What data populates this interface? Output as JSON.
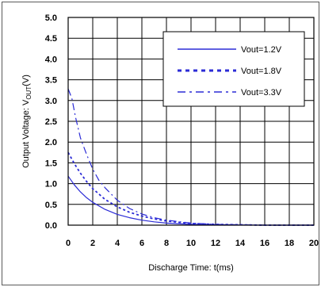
{
  "chart_data": {
    "type": "line",
    "title": "",
    "xlabel": "Discharge Time: t(ms)",
    "ylabel_main": "Output Voltage: V",
    "ylabel_sub": "OUT",
    "ylabel_unit": "(V)",
    "xlim": [
      0,
      20
    ],
    "ylim": [
      0,
      5
    ],
    "x_ticks": [
      0,
      2,
      4,
      6,
      8,
      10,
      12,
      14,
      16,
      18,
      20
    ],
    "y_ticks": [
      "0.0",
      "0.5",
      "1.0",
      "1.5",
      "2.0",
      "2.5",
      "3.0",
      "3.5",
      "4.0",
      "4.5",
      "5.0"
    ],
    "grid": true,
    "legend_position": "top-right",
    "series_color": "#2b2bd6",
    "series": [
      {
        "name": "Vout=1.2V",
        "style": "solid",
        "x": [
          0,
          0.5,
          1,
          1.5,
          2,
          3,
          4,
          5,
          6,
          7,
          8,
          10,
          12,
          16,
          20
        ],
        "y": [
          1.18,
          0.97,
          0.8,
          0.66,
          0.55,
          0.38,
          0.26,
          0.18,
          0.12,
          0.08,
          0.05,
          0.02,
          0.01,
          0.0,
          0.0
        ]
      },
      {
        "name": "Vout=1.8V",
        "style": "dotted",
        "x": [
          0,
          0.5,
          1,
          1.5,
          2,
          3,
          4,
          5,
          6,
          7,
          8,
          10,
          12,
          16,
          20
        ],
        "y": [
          1.75,
          1.48,
          1.25,
          1.05,
          0.88,
          0.62,
          0.44,
          0.31,
          0.22,
          0.15,
          0.1,
          0.04,
          0.02,
          0.0,
          0.0
        ]
      },
      {
        "name": "Vout=3.3V",
        "style": "dashdot",
        "x": [
          0,
          0.3,
          0.6,
          1,
          1.5,
          2,
          2.5,
          3,
          4,
          5,
          6,
          7,
          8,
          10,
          12,
          16,
          20
        ],
        "y": [
          3.28,
          3.05,
          2.6,
          2.1,
          1.7,
          1.35,
          1.08,
          0.9,
          0.6,
          0.4,
          0.27,
          0.18,
          0.12,
          0.05,
          0.02,
          0.0,
          0.0
        ]
      }
    ]
  }
}
